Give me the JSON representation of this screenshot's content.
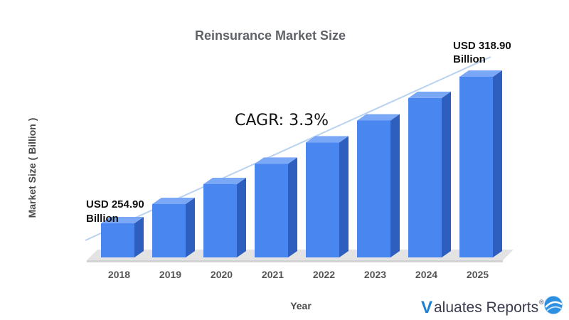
{
  "chart_data": {
    "type": "bar",
    "title": "Reinsurance Market Size",
    "xlabel": "Year",
    "ylabel": "Market Size ( Billion )",
    "categories": [
      "2018",
      "2019",
      "2020",
      "2021",
      "2022",
      "2023",
      "2024",
      "2025"
    ],
    "values": [
      254.9,
      263.3,
      272.0,
      280.9,
      290.2,
      299.8,
      309.6,
      318.9
    ],
    "ylim": [
      240,
      322
    ],
    "grid": false,
    "legend": "none",
    "trendline": true,
    "annotations": {
      "start_line1": "USD 254.90",
      "start_line2": "Billion",
      "end_line1": "USD 318.90",
      "end_line2": "Billion",
      "cagr": "CAGR: 3.3%"
    },
    "colors": {
      "bar_front": "#4a86f0",
      "bar_top": "#7aa8f7",
      "bar_side": "#2f5fbe",
      "floor": "#e3e3e3",
      "trend": "#b9d2ef"
    }
  },
  "branding": {
    "logo_letter": "V",
    "logo_text": "aluates Reports",
    "registered": "®",
    "logo_icon": "valuates-globe-icon"
  }
}
